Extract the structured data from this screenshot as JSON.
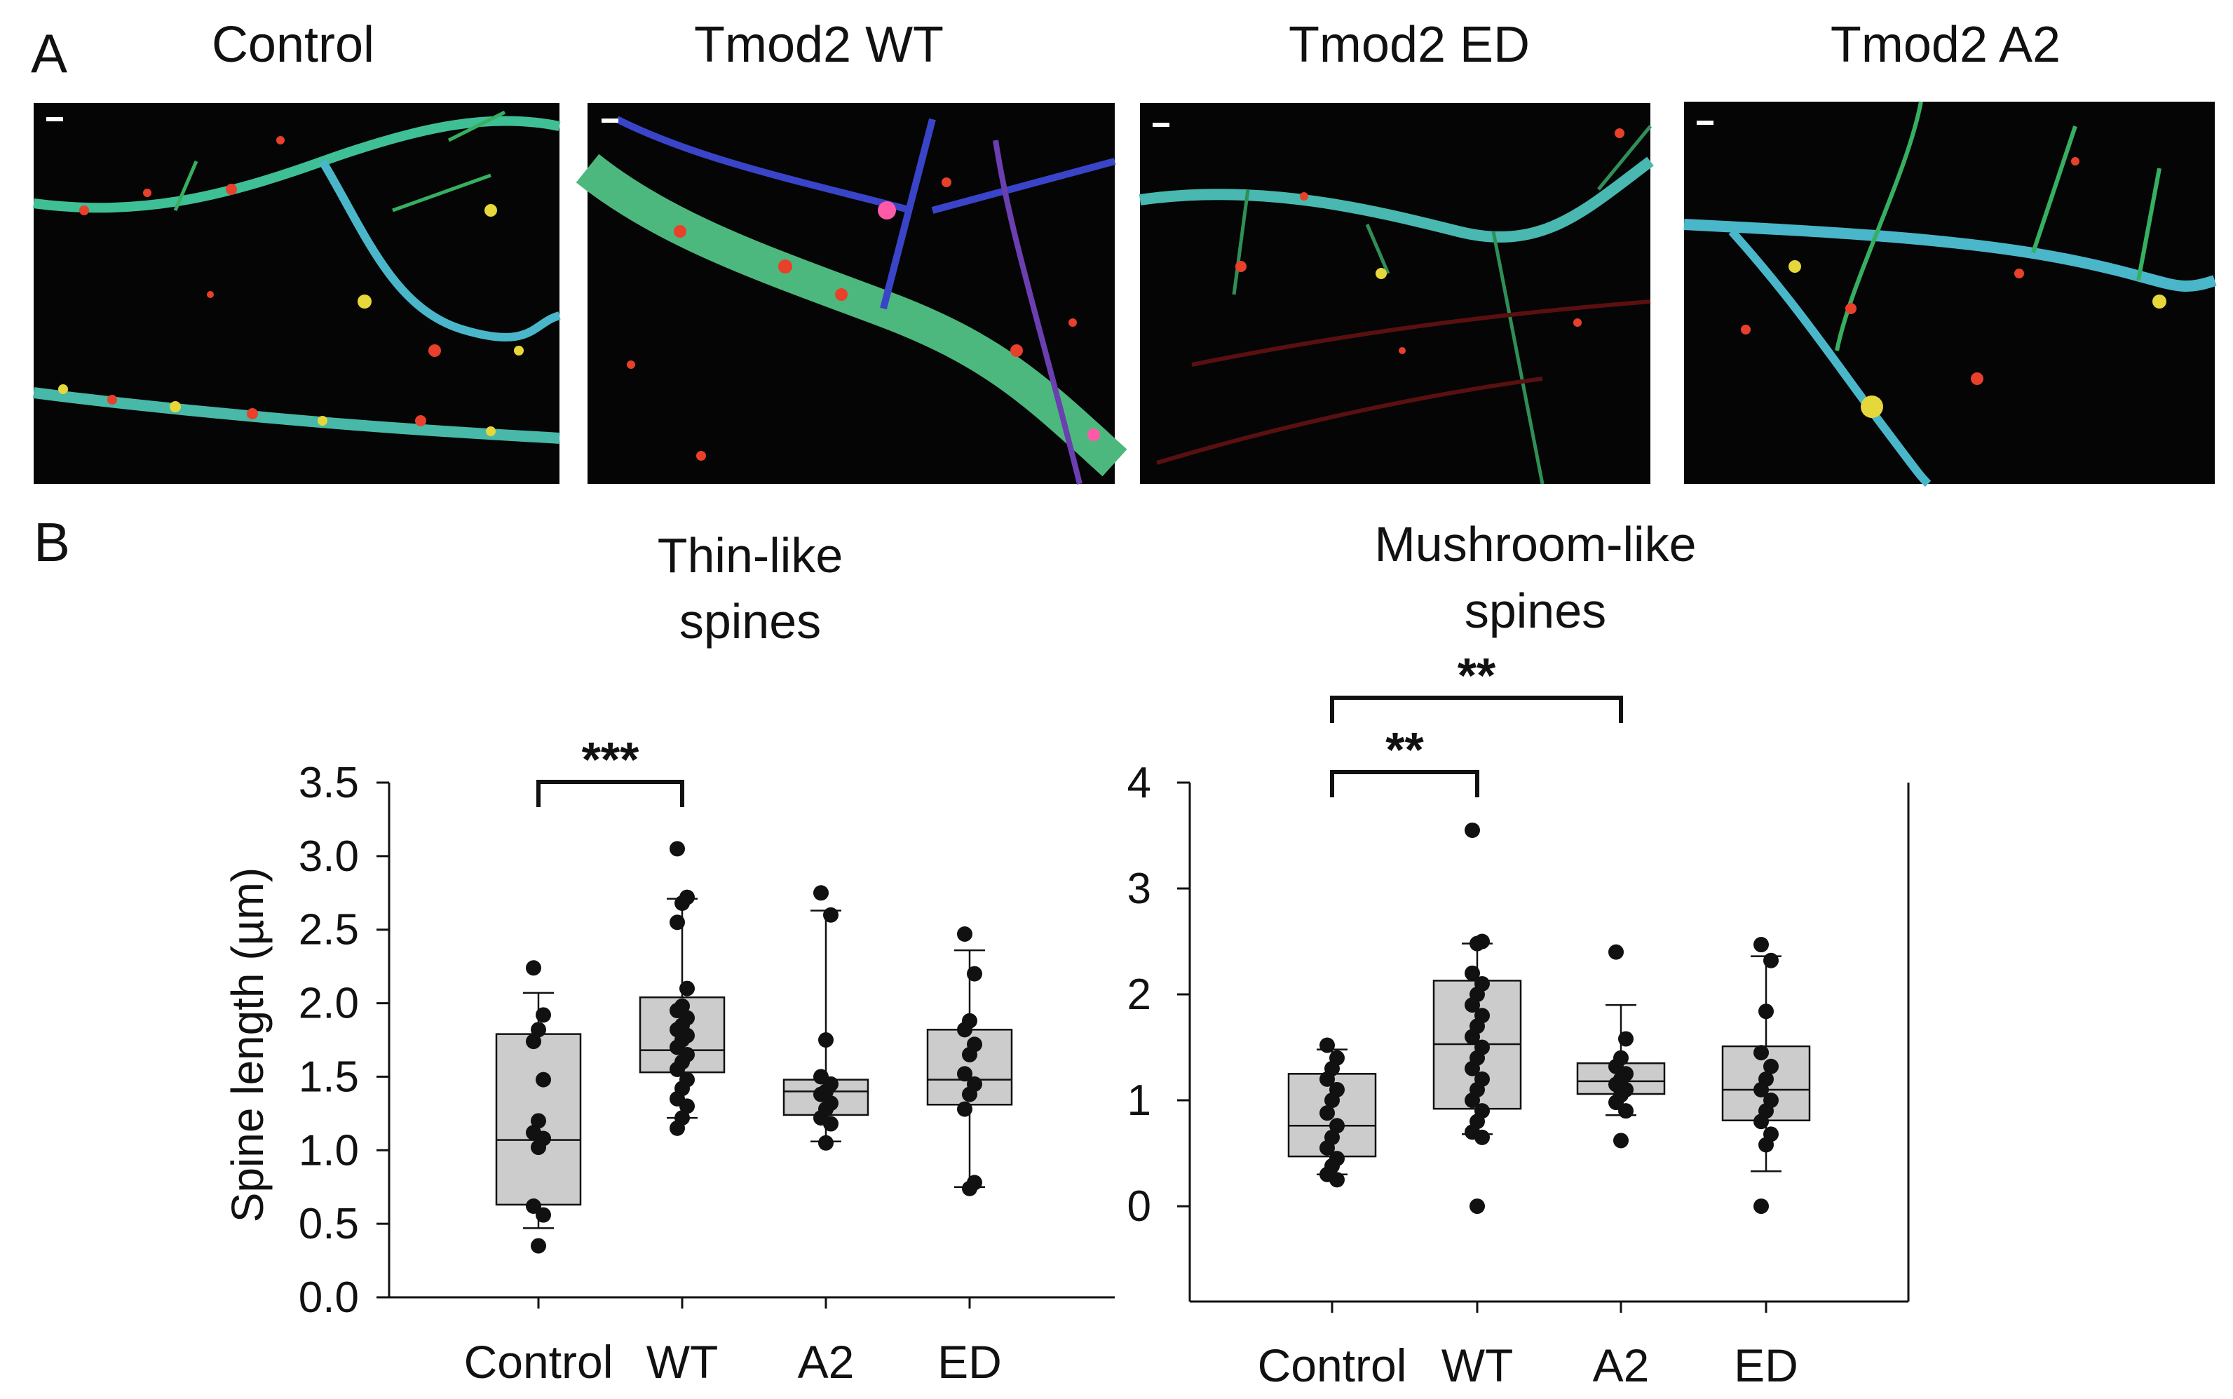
{
  "figure": {
    "panel_a_letter": "A",
    "panel_b_letter": "B",
    "micrograph_titles": [
      "Control",
      "Tmod2 WT",
      "Tmod2 ED",
      "Tmod2 A2"
    ],
    "colors": {
      "box_fill": "#cccccc",
      "stroke": "#111111",
      "dendrite_green": "#39c48a",
      "dendrite_cyan": "#4ab6c9",
      "spine_red": "#e8402a",
      "spine_yellow": "#e6d83a",
      "blue_channel": "#3a44c8"
    }
  },
  "chart_data": [
    {
      "type": "box",
      "title_line1": "Thin-like",
      "title_line2": "spines",
      "ylabel": "Spine length (µm)",
      "ylim": [
        0,
        3.5
      ],
      "yticks": [
        0.0,
        0.5,
        1.0,
        1.5,
        2.0,
        2.5,
        3.0,
        3.5
      ],
      "ytick_labels": [
        "0.0",
        "0.5",
        "1.0",
        "1.5",
        "2.0",
        "2.5",
        "3.0",
        "3.5"
      ],
      "categories": [
        "Control",
        "WT",
        "A2",
        "ED"
      ],
      "boxes": [
        {
          "name": "Control",
          "q1": 0.63,
          "median": 1.07,
          "q3": 1.79,
          "whisker_low": 0.47,
          "whisker_high": 2.07,
          "points": [
            2.24,
            1.92,
            1.82,
            1.74,
            1.48,
            1.2,
            1.12,
            1.08,
            1.02,
            0.62,
            0.56,
            0.35
          ]
        },
        {
          "name": "WT",
          "q1": 1.53,
          "median": 1.68,
          "q3": 2.04,
          "whisker_low": 1.22,
          "whisker_high": 2.71,
          "points": [
            3.05,
            2.72,
            2.68,
            2.55,
            2.1,
            1.98,
            1.95,
            1.9,
            1.85,
            1.82,
            1.78,
            1.75,
            1.7,
            1.65,
            1.6,
            1.55,
            1.48,
            1.42,
            1.35,
            1.3,
            1.22,
            1.15
          ]
        },
        {
          "name": "A2",
          "q1": 1.24,
          "median": 1.4,
          "q3": 1.48,
          "whisker_low": 1.06,
          "whisker_high": 2.63,
          "points": [
            2.75,
            2.6,
            1.75,
            1.5,
            1.45,
            1.4,
            1.38,
            1.32,
            1.28,
            1.22,
            1.18,
            1.05
          ]
        },
        {
          "name": "ED",
          "q1": 1.31,
          "median": 1.48,
          "q3": 1.82,
          "whisker_low": 0.75,
          "whisker_high": 2.36,
          "points": [
            2.47,
            2.2,
            1.88,
            1.82,
            1.72,
            1.65,
            1.52,
            1.45,
            1.38,
            1.28,
            0.78,
            0.74
          ]
        }
      ],
      "significance": [
        {
          "from": "Control",
          "to": "WT",
          "label": "***"
        }
      ]
    },
    {
      "type": "box",
      "title_line1": "Mushroom-like",
      "title_line2": "spines",
      "ylim": [
        -0.9,
        4
      ],
      "yticks": [
        0,
        1,
        2,
        3,
        4
      ],
      "ytick_labels": [
        "0",
        "1",
        "2",
        "3",
        "4"
      ],
      "categories": [
        "Control",
        "WT",
        "A2",
        "ED"
      ],
      "boxes": [
        {
          "name": "Control",
          "q1": 0.47,
          "median": 0.76,
          "q3": 1.25,
          "whisker_low": 0.3,
          "whisker_high": 1.48,
          "points": [
            1.52,
            1.4,
            1.3,
            1.2,
            1.1,
            1.0,
            0.88,
            0.76,
            0.65,
            0.55,
            0.45,
            0.38,
            0.3,
            0.25
          ]
        },
        {
          "name": "WT",
          "q1": 0.92,
          "median": 1.53,
          "q3": 2.13,
          "whisker_low": 0.68,
          "whisker_high": 2.48,
          "points": [
            3.55,
            2.5,
            2.48,
            2.2,
            2.1,
            2.0,
            1.9,
            1.8,
            1.7,
            1.6,
            1.5,
            1.4,
            1.3,
            1.2,
            1.1,
            1.0,
            0.9,
            0.8,
            0.7,
            0.65,
            0.0
          ]
        },
        {
          "name": "A2",
          "q1": 1.06,
          "median": 1.18,
          "q3": 1.35,
          "whisker_low": 0.86,
          "whisker_high": 1.9,
          "points": [
            2.4,
            1.58,
            1.4,
            1.32,
            1.25,
            1.2,
            1.15,
            1.1,
            1.05,
            0.98,
            0.9,
            0.62
          ]
        },
        {
          "name": "ED",
          "q1": 0.81,
          "median": 1.1,
          "q3": 1.51,
          "whisker_low": 0.33,
          "whisker_high": 2.36,
          "points": [
            2.47,
            2.32,
            1.84,
            1.45,
            1.32,
            1.2,
            1.1,
            1.0,
            0.9,
            0.8,
            0.68,
            0.58,
            0.0
          ]
        }
      ],
      "significance": [
        {
          "from": "Control",
          "to": "WT",
          "label": "**"
        },
        {
          "from": "Control",
          "to": "A2",
          "label": "**"
        }
      ]
    }
  ]
}
